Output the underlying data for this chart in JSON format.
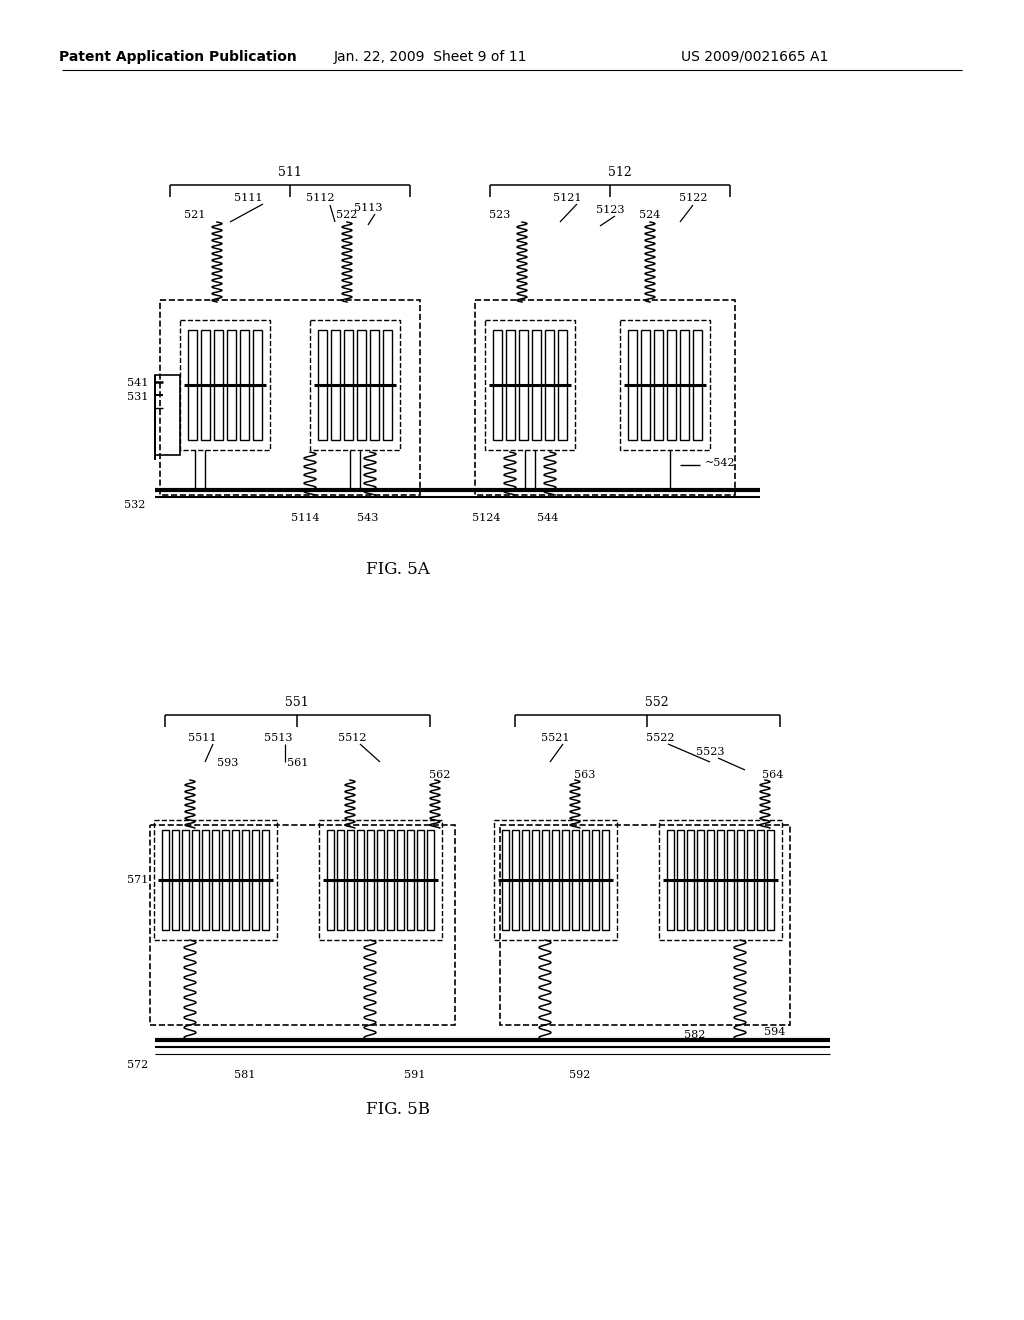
{
  "bg_color": "#ffffff",
  "header_text": "Patent Application Publication",
  "header_date": "Jan. 22, 2009  Sheet 9 of 11",
  "header_patent": "US 2009/0021665 A1",
  "fig5a_label": "FIG. 5A",
  "fig5b_label": "FIG. 5B",
  "line_color": "#000000",
  "text_color": "#000000"
}
